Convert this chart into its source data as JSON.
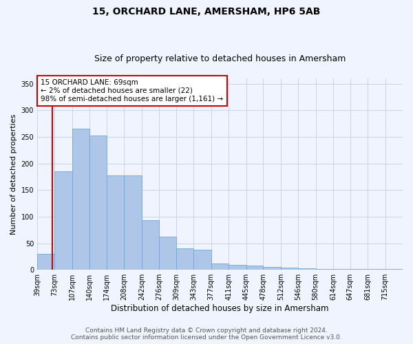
{
  "title": "15, ORCHARD LANE, AMERSHAM, HP6 5AB",
  "subtitle": "Size of property relative to detached houses in Amersham",
  "xlabel": "Distribution of detached houses by size in Amersham",
  "ylabel": "Number of detached properties",
  "bar_labels": [
    "39sqm",
    "73sqm",
    "107sqm",
    "140sqm",
    "174sqm",
    "208sqm",
    "242sqm",
    "276sqm",
    "309sqm",
    "343sqm",
    "377sqm",
    "411sqm",
    "445sqm",
    "478sqm",
    "512sqm",
    "546sqm",
    "580sqm",
    "614sqm",
    "647sqm",
    "681sqm",
    "715sqm"
  ],
  "bar_heights": [
    30,
    185,
    265,
    253,
    178,
    178,
    93,
    63,
    40,
    38,
    12,
    9,
    8,
    5,
    4,
    3,
    2,
    1,
    1,
    1,
    1
  ],
  "bar_color": "#aec6e8",
  "bar_edge_color": "#6aaad4",
  "bg_color": "#f0f4ff",
  "grid_color": "#c8d4e8",
  "annotation_box_text": "15 ORCHARD LANE: 69sqm\n← 2% of detached houses are smaller (22)\n98% of semi-detached houses are larger (1,161) →",
  "annotation_box_color": "#ffffff",
  "annotation_box_edge": "#cc0000",
  "vline_color": "#cc0000",
  "vline_x": 69,
  "bin_edges": [
    39,
    73,
    107,
    140,
    174,
    208,
    242,
    276,
    309,
    343,
    377,
    411,
    445,
    478,
    512,
    546,
    580,
    614,
    647,
    681,
    715,
    749
  ],
  "ylim": [
    0,
    360
  ],
  "yticks": [
    0,
    50,
    100,
    150,
    200,
    250,
    300,
    350
  ],
  "footer_line1": "Contains HM Land Registry data © Crown copyright and database right 2024.",
  "footer_line2": "Contains public sector information licensed under the Open Government Licence v3.0.",
  "title_fontsize": 10,
  "subtitle_fontsize": 9,
  "tick_fontsize": 7,
  "ylabel_fontsize": 8,
  "xlabel_fontsize": 8.5,
  "footer_fontsize": 6.5,
  "annotation_fontsize": 7.5
}
